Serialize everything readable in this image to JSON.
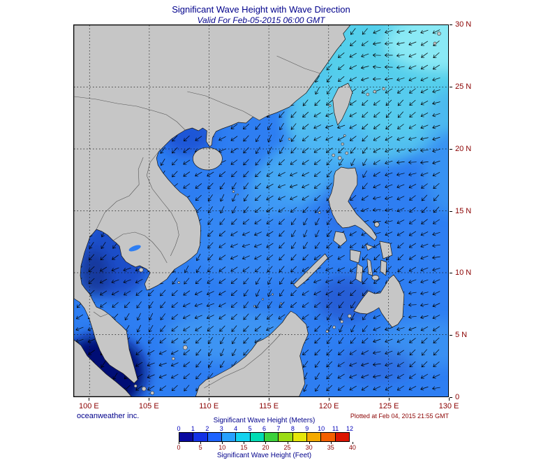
{
  "header": {
    "title": "Significant Wave Height with Wave Direction",
    "subtitle": "Valid For Feb-05-2015 06:00 GMT"
  },
  "footer": {
    "credit": "oceanweather inc.",
    "plotted": "Plotted at Feb 04, 2015 21:55 GMT"
  },
  "axes": {
    "lon": {
      "min": 98.7,
      "max": 130,
      "ticks": [
        100,
        105,
        110,
        115,
        120,
        125,
        130
      ],
      "labels": [
        "100 E",
        "105 E",
        "110 E",
        "115 E",
        "120 E",
        "125 E",
        "130 E"
      ]
    },
    "lat": {
      "min": 0,
      "max": 30,
      "ticks": [
        0,
        5,
        10,
        15,
        20,
        25,
        30
      ],
      "labels": [
        "0",
        "5 N",
        "10 N",
        "15 N",
        "20 N",
        "25 N",
        "30 N"
      ]
    }
  },
  "legend": {
    "meters_label": "Significant Wave Height (Meters)",
    "feet_label": "Significant Wave Height (Feet)",
    "meters_ticks": [
      "0",
      "1",
      "2",
      "3",
      "4",
      "5",
      "6",
      "7",
      "8",
      "9",
      "10",
      "11",
      "12"
    ],
    "feet_ticks": [
      "0",
      "5",
      "10",
      "15",
      "20",
      "25",
      "30",
      "35",
      "40"
    ],
    "colors": [
      "#0a0aa0",
      "#1432e6",
      "#1e64ff",
      "#28a0ff",
      "#14d2f0",
      "#00dcb4",
      "#3cd23c",
      "#9bdc14",
      "#e6e60a",
      "#f5aa00",
      "#f55f00",
      "#dc1400"
    ]
  },
  "colors": {
    "title": "#00008b",
    "axis": "#8b0000",
    "meters": "#0000bb",
    "feet": "#8b0000",
    "land": "#c6c6c6",
    "coast": "#1a1a1a",
    "ocean": "#2e7ef2",
    "grid": "#111111",
    "arrow": "#000000"
  }
}
